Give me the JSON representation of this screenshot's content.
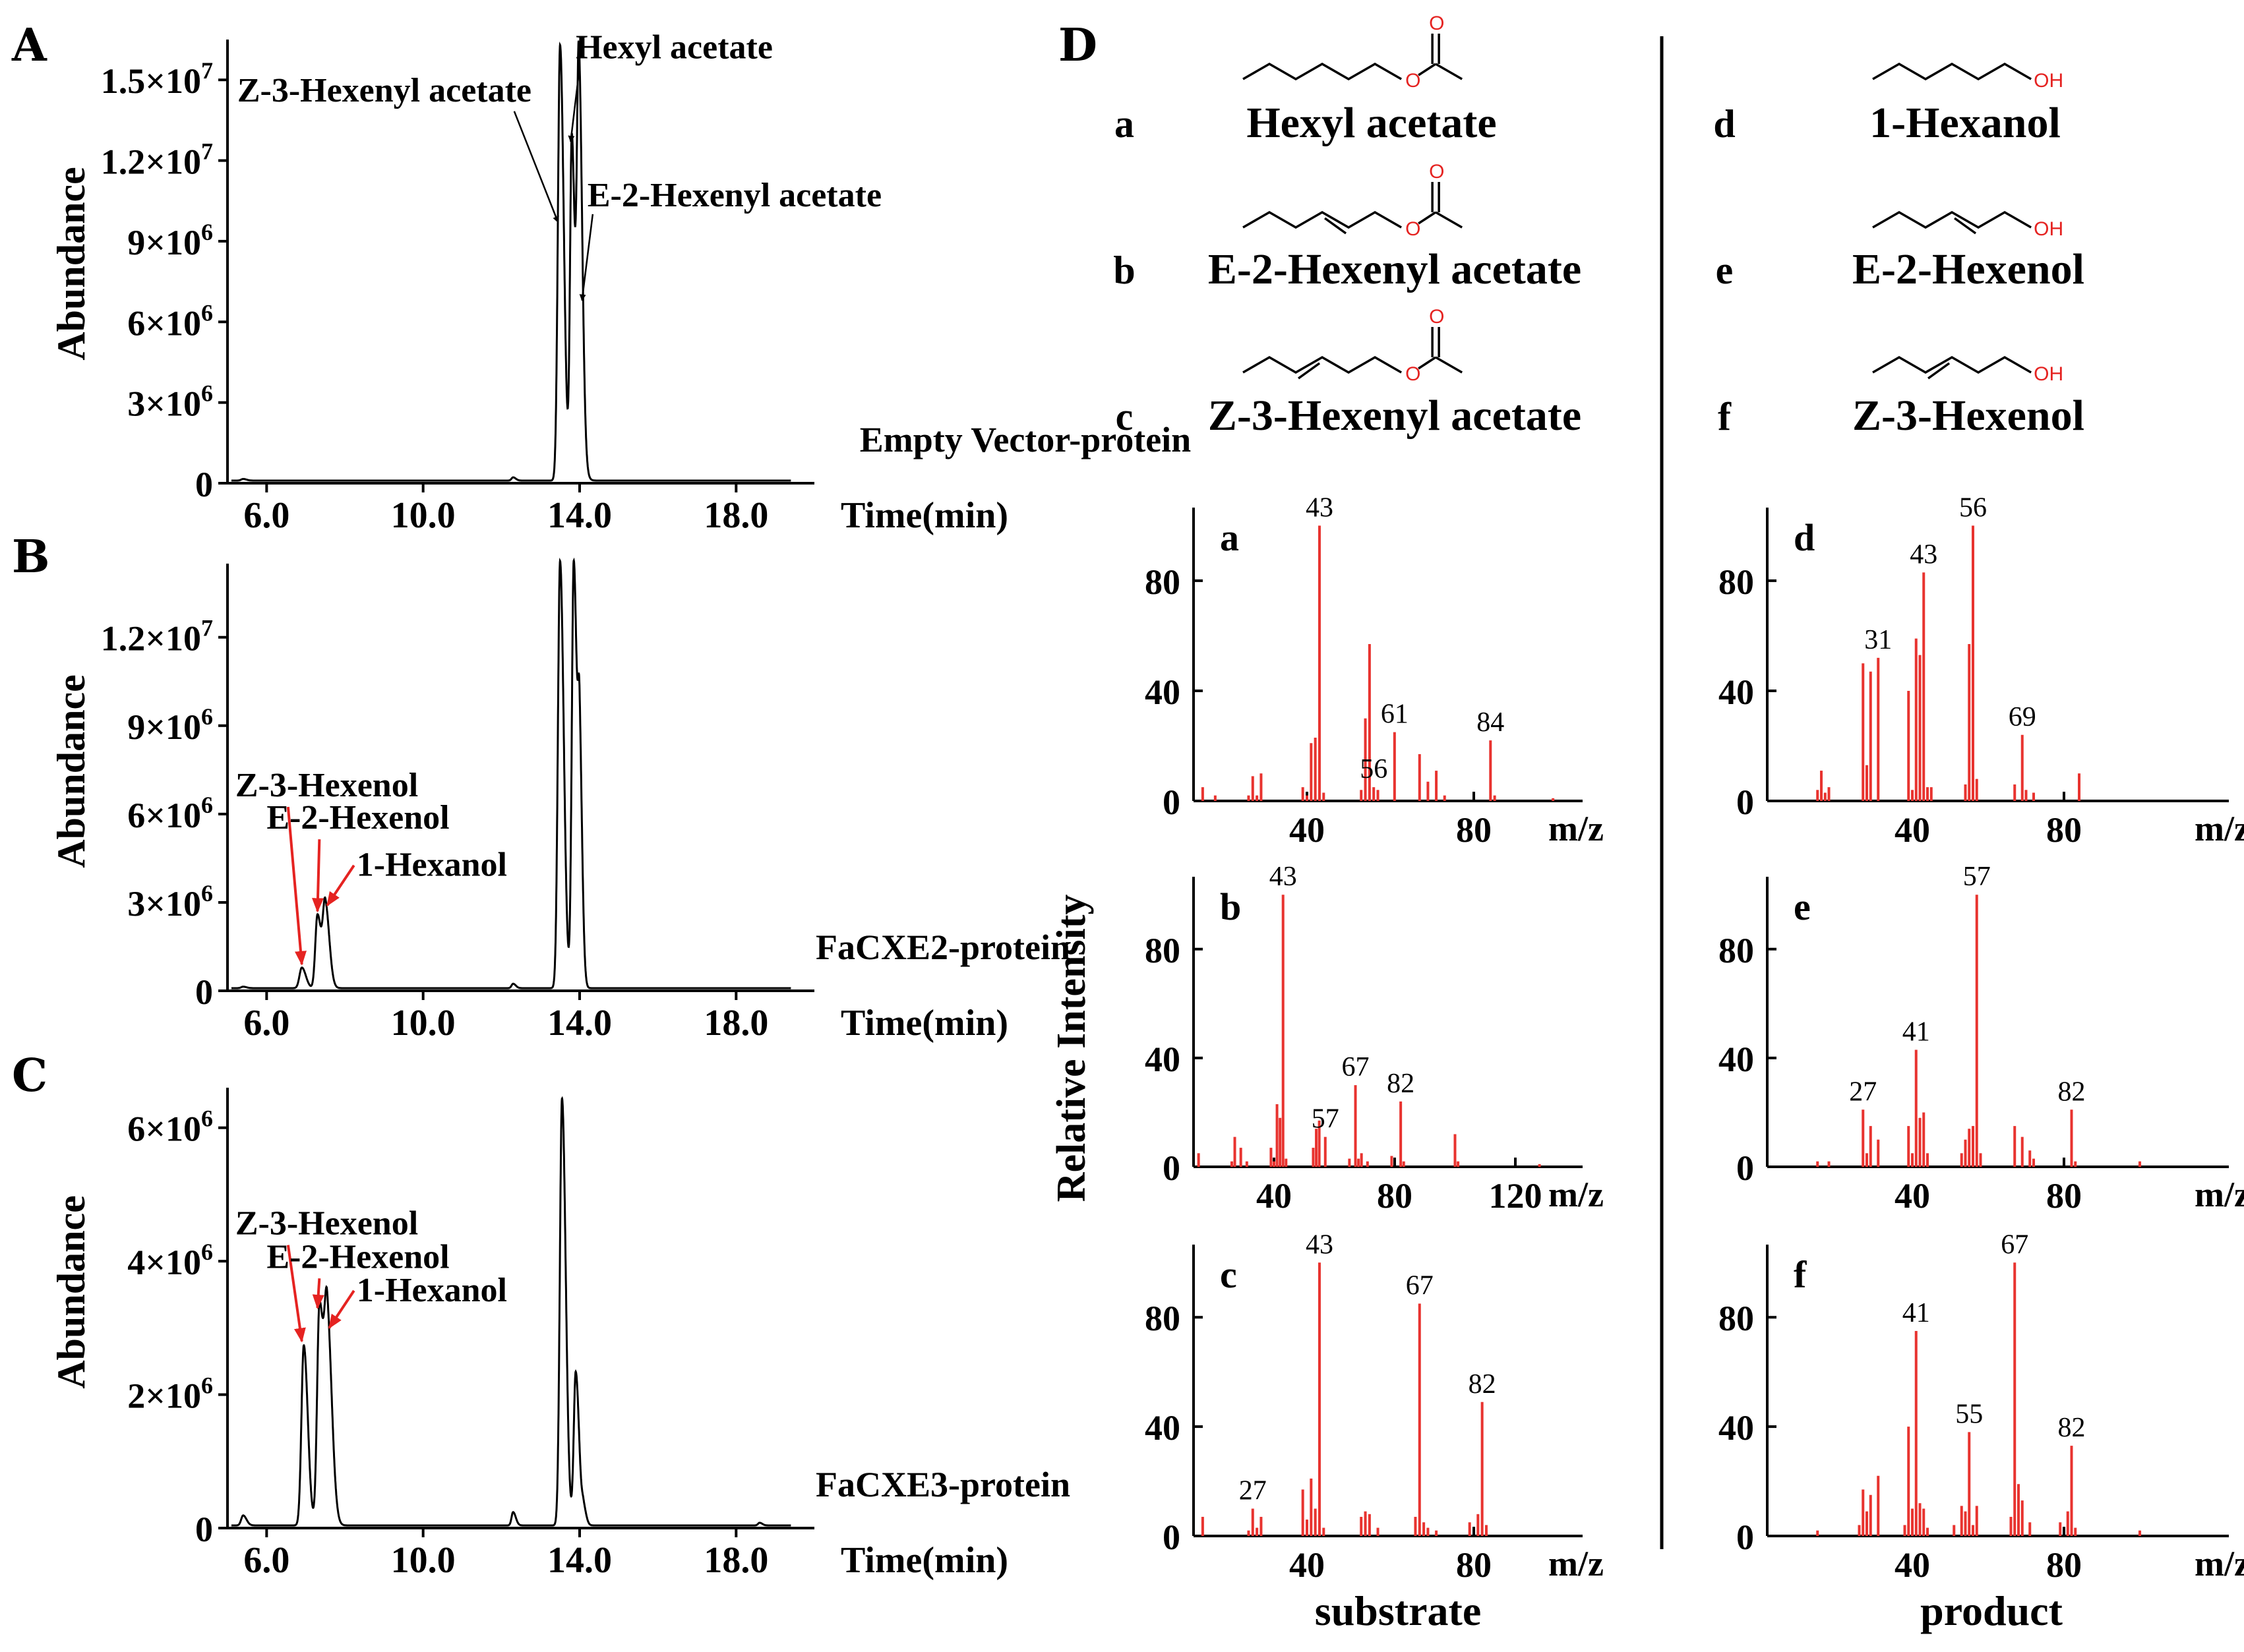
{
  "colors": {
    "trace": "#000000",
    "ms_bar": "#e8332f",
    "arrow_red": "#e52321",
    "heteroatom": "#e52321"
  },
  "panels": {
    "A": "A",
    "B": "B",
    "C": "C",
    "D": "D"
  },
  "chromatogram_axes": {
    "ylabel": "Abundance",
    "xlabel": "Time(min)"
  },
  "ms_axes": {
    "ylabel": "Relative Intensity",
    "xlabel": "m/z",
    "col_left_label": "substrate",
    "col_right_label": "product"
  },
  "compounds": [
    {
      "letter": "a",
      "name": "Hexyl acetate",
      "type": "ester",
      "o_label": "O"
    },
    {
      "letter": "b",
      "name": "E-2-Hexenyl acetate",
      "type": "ester",
      "o_label": "O"
    },
    {
      "letter": "c",
      "name": "Z-3-Hexenyl acetate",
      "type": "ester",
      "o_label": "O"
    },
    {
      "letter": "d",
      "name": "1-Hexanol",
      "type": "alcohol",
      "oh_label": "OH"
    },
    {
      "letter": "e",
      "name": "E-2-Hexenol",
      "type": "alcohol",
      "oh_label": "OH"
    },
    {
      "letter": "f",
      "name": "Z-3-Hexenol",
      "type": "alcohol",
      "oh_label": "OH"
    }
  ],
  "chart_data": [
    {
      "id": "A",
      "type": "line",
      "sample_label": "Empty Vector-protein",
      "xlim": [
        5.0,
        20.0
      ],
      "xticks": [
        6.0,
        10.0,
        14.0,
        18.0
      ],
      "xtick_labels": [
        "6.0",
        "10.0",
        "14.0",
        "18.0"
      ],
      "ylim": [
        0,
        16500000
      ],
      "yticks": [
        0,
        3000000,
        6000000,
        9000000,
        12000000,
        15000000
      ],
      "ytick_labels": [
        {
          "m": "0",
          "e": ""
        },
        {
          "m": "3×10",
          "e": "6"
        },
        {
          "m": "6×10",
          "e": "6"
        },
        {
          "m": "9×10",
          "e": "6"
        },
        {
          "m": "1.2×10",
          "e": "7"
        },
        {
          "m": "1.5×10",
          "e": "7"
        }
      ],
      "peaks": [
        [
          5.4,
          60000,
          0.05
        ],
        [
          12.3,
          120000,
          0.04
        ],
        [
          13.5,
          16200000,
          0.055
        ],
        [
          13.8,
          12800000,
          0.045
        ],
        [
          13.98,
          15500000,
          0.05
        ],
        [
          14.15,
          120000,
          0.05
        ]
      ],
      "annotations": [
        {
          "text": "Z-3-Hexenyl acetate",
          "tx": 5.25,
          "ty": 14200000,
          "ax": 13.45,
          "ay": 9700000,
          "arrow": "black"
        },
        {
          "text": "Hexyl acetate",
          "tx": 13.9,
          "ty": 15800000,
          "ax": 13.77,
          "ay": 12700000,
          "arrow": "black"
        },
        {
          "text": "E-2-Hexenyl acetate",
          "tx": 14.2,
          "ty": 10300000,
          "ax": 14.06,
          "ay": 6800000,
          "arrow": "black"
        }
      ]
    },
    {
      "id": "B",
      "type": "line",
      "sample_label": "FaCXE2-protein",
      "xlim": [
        5.0,
        20.0
      ],
      "xticks": [
        6.0,
        10.0,
        14.0,
        18.0
      ],
      "xtick_labels": [
        "6.0",
        "10.0",
        "14.0",
        "18.0"
      ],
      "ylim": [
        0,
        14500000
      ],
      "yticks": [
        0,
        3000000,
        6000000,
        9000000,
        12000000
      ],
      "ytick_labels": [
        {
          "m": "0",
          "e": ""
        },
        {
          "m": "3×10",
          "e": "6"
        },
        {
          "m": "6×10",
          "e": "6"
        },
        {
          "m": "9×10",
          "e": "6"
        },
        {
          "m": "1.2×10",
          "e": "7"
        }
      ],
      "peaks": [
        [
          5.4,
          50000,
          0.05
        ],
        [
          6.9,
          700000,
          0.06
        ],
        [
          7.3,
          2500000,
          0.055
        ],
        [
          7.5,
          2800000,
          0.06
        ],
        [
          12.3,
          150000,
          0.04
        ],
        [
          13.5,
          14500000,
          0.055
        ],
        [
          13.85,
          14500000,
          0.05
        ],
        [
          14.0,
          7000000,
          0.04
        ]
      ],
      "annotations": [
        {
          "text": "Z-3-Hexenol",
          "tx": 5.2,
          "ty": 6600000,
          "ax": 6.9,
          "ay": 900000,
          "arrow": "red"
        },
        {
          "text": "E-2-Hexenol",
          "tx": 6.0,
          "ty": 5500000,
          "ax": 7.3,
          "ay": 2700000,
          "arrow": "red"
        },
        {
          "text": "1-Hexanol",
          "tx": 8.3,
          "ty": 3900000,
          "ax": 7.55,
          "ay": 2900000,
          "arrow": "red"
        }
      ]
    },
    {
      "id": "C",
      "type": "line",
      "sample_label": "FaCXE3-protein",
      "xlim": [
        5.0,
        20.0
      ],
      "xticks": [
        6.0,
        10.0,
        14.0,
        18.0
      ],
      "xtick_labels": [
        "6.0",
        "10.0",
        "14.0",
        "18.0"
      ],
      "ylim": [
        0,
        6600000
      ],
      "yticks": [
        0,
        2000000,
        4000000,
        6000000
      ],
      "ytick_labels": [
        {
          "m": "0",
          "e": ""
        },
        {
          "m": "2×10",
          "e": "6"
        },
        {
          "m": "4×10",
          "e": "6"
        },
        {
          "m": "6×10",
          "e": "6"
        }
      ],
      "peaks": [
        [
          5.4,
          150000,
          0.05
        ],
        [
          6.95,
          2700000,
          0.06
        ],
        [
          7.35,
          3300000,
          0.06
        ],
        [
          7.55,
          3000000,
          0.07
        ],
        [
          12.3,
          200000,
          0.04
        ],
        [
          13.55,
          6400000,
          0.055
        ],
        [
          13.9,
          2300000,
          0.05
        ],
        [
          14.1,
          250000,
          0.04
        ],
        [
          18.6,
          40000,
          0.04
        ]
      ],
      "annotations": [
        {
          "text": "Z-3-Hexenol",
          "tx": 5.2,
          "ty": 4400000,
          "ax": 6.9,
          "ay": 2800000,
          "arrow": "red"
        },
        {
          "text": "E-2-Hexenol",
          "tx": 6.0,
          "ty": 3900000,
          "ax": 7.3,
          "ay": 3300000,
          "arrow": "red"
        },
        {
          "text": "1-Hexanol",
          "tx": 8.3,
          "ty": 3400000,
          "ax": 7.6,
          "ay": 3000000,
          "arrow": "red"
        }
      ]
    },
    {
      "id": "Da",
      "type": "bar",
      "letter": "a",
      "xlim": [
        10,
        110
      ],
      "xticks": [
        40,
        80
      ],
      "ylim": [
        0,
        100
      ],
      "yticks": [
        0,
        40,
        80
      ],
      "bars": [
        [
          15,
          5
        ],
        [
          18,
          2
        ],
        [
          26,
          2
        ],
        [
          27,
          9
        ],
        [
          28,
          2
        ],
        [
          29,
          10
        ],
        [
          39,
          5
        ],
        [
          40,
          2
        ],
        [
          41,
          21
        ],
        [
          42,
          23
        ],
        [
          43,
          100
        ],
        [
          44,
          3
        ],
        [
          53,
          4
        ],
        [
          54,
          30
        ],
        [
          55,
          57
        ],
        [
          56,
          5
        ],
        [
          57,
          4
        ],
        [
          61,
          25
        ],
        [
          67,
          17
        ],
        [
          69,
          7
        ],
        [
          71,
          11
        ],
        [
          73,
          2
        ],
        [
          84,
          22
        ],
        [
          85,
          2
        ],
        [
          99,
          1
        ]
      ],
      "labels": [
        [
          43,
          "43"
        ],
        [
          56,
          "56"
        ],
        [
          61,
          "61"
        ],
        [
          84,
          "84"
        ]
      ]
    },
    {
      "id": "Db",
      "type": "bar",
      "letter": "b",
      "xlim": [
        10,
        140
      ],
      "xticks": [
        40,
        80,
        120
      ],
      "ylim": [
        0,
        100
      ],
      "yticks": [
        0,
        40,
        80
      ],
      "bars": [
        [
          15,
          5
        ],
        [
          26,
          2
        ],
        [
          27,
          11
        ],
        [
          29,
          7
        ],
        [
          31,
          2
        ],
        [
          39,
          7
        ],
        [
          40,
          2
        ],
        [
          41,
          23
        ],
        [
          42,
          18
        ],
        [
          43,
          100
        ],
        [
          44,
          3
        ],
        [
          53,
          7
        ],
        [
          54,
          14
        ],
        [
          55,
          17
        ],
        [
          57,
          11
        ],
        [
          65,
          3
        ],
        [
          67,
          30
        ],
        [
          68,
          3
        ],
        [
          69,
          5
        ],
        [
          71,
          2
        ],
        [
          79,
          4
        ],
        [
          82,
          24
        ],
        [
          83,
          2
        ],
        [
          100,
          12
        ],
        [
          101,
          2
        ],
        [
          128,
          1
        ]
      ],
      "labels": [
        [
          43,
          "43"
        ],
        [
          57,
          "57"
        ],
        [
          67,
          "67"
        ],
        [
          82,
          "82"
        ]
      ]
    },
    {
      "id": "Dc",
      "type": "bar",
      "letter": "c",
      "xlim": [
        10,
        100
      ],
      "xticks": [
        40,
        80
      ],
      "ylim": [
        0,
        100
      ],
      "yticks": [
        0,
        40,
        80
      ],
      "bars": [
        [
          15,
          7
        ],
        [
          26,
          2
        ],
        [
          27,
          10
        ],
        [
          28,
          3
        ],
        [
          29,
          7
        ],
        [
          39,
          17
        ],
        [
          40,
          6
        ],
        [
          41,
          21
        ],
        [
          42,
          10
        ],
        [
          43,
          100
        ],
        [
          44,
          3
        ],
        [
          53,
          7
        ],
        [
          54,
          9
        ],
        [
          55,
          8
        ],
        [
          57,
          3
        ],
        [
          66,
          7
        ],
        [
          67,
          85
        ],
        [
          68,
          5
        ],
        [
          69,
          3
        ],
        [
          71,
          2
        ],
        [
          79,
          5
        ],
        [
          81,
          8
        ],
        [
          82,
          49
        ],
        [
          83,
          4
        ]
      ],
      "labels": [
        [
          27,
          "27"
        ],
        [
          43,
          "43"
        ],
        [
          67,
          "67"
        ],
        [
          82,
          "82"
        ]
      ]
    },
    {
      "id": "Dd",
      "type": "bar",
      "letter": "d",
      "xlim": [
        10,
        90
      ],
      "xticks": [
        40,
        80
      ],
      "ylim": [
        0,
        100
      ],
      "yticks": [
        0,
        40,
        80
      ],
      "bars": [
        [
          15,
          4
        ],
        [
          16,
          11
        ],
        [
          17,
          3
        ],
        [
          18,
          5
        ],
        [
          27,
          50
        ],
        [
          28,
          13
        ],
        [
          29,
          47
        ],
        [
          31,
          52
        ],
        [
          39,
          40
        ],
        [
          40,
          4
        ],
        [
          41,
          59
        ],
        [
          42,
          53
        ],
        [
          43,
          83
        ],
        [
          44,
          5
        ],
        [
          45,
          5
        ],
        [
          54,
          6
        ],
        [
          55,
          57
        ],
        [
          56,
          100
        ],
        [
          57,
          8
        ],
        [
          67,
          6
        ],
        [
          69,
          24
        ],
        [
          70,
          4
        ],
        [
          72,
          3
        ],
        [
          84,
          10
        ]
      ],
      "labels": [
        [
          31,
          "31"
        ],
        [
          43,
          "43"
        ],
        [
          56,
          "56"
        ],
        [
          69,
          "69"
        ]
      ]
    },
    {
      "id": "De",
      "type": "bar",
      "letter": "e",
      "xlim": [
        10,
        90
      ],
      "xticks": [
        40,
        80
      ],
      "ylim": [
        0,
        100
      ],
      "yticks": [
        0,
        40,
        80
      ],
      "bars": [
        [
          15,
          2
        ],
        [
          18,
          2
        ],
        [
          27,
          21
        ],
        [
          28,
          5
        ],
        [
          29,
          15
        ],
        [
          31,
          10
        ],
        [
          39,
          15
        ],
        [
          40,
          5
        ],
        [
          41,
          43
        ],
        [
          42,
          18
        ],
        [
          43,
          20
        ],
        [
          44,
          5
        ],
        [
          53,
          5
        ],
        [
          54,
          10
        ],
        [
          55,
          14
        ],
        [
          56,
          15
        ],
        [
          57,
          100
        ],
        [
          58,
          5
        ],
        [
          67,
          15
        ],
        [
          69,
          11
        ],
        [
          71,
          6
        ],
        [
          72,
          3
        ],
        [
          82,
          21
        ],
        [
          83,
          2
        ],
        [
          100,
          2
        ]
      ],
      "labels": [
        [
          27,
          "27"
        ],
        [
          41,
          "41"
        ],
        [
          57,
          "57"
        ],
        [
          82,
          "82"
        ]
      ]
    },
    {
      "id": "Df",
      "type": "bar",
      "letter": "f",
      "xlim": [
        10,
        90
      ],
      "xticks": [
        40,
        80
      ],
      "ylim": [
        0,
        100
      ],
      "yticks": [
        0,
        40,
        80
      ],
      "bars": [
        [
          15,
          2
        ],
        [
          26,
          4
        ],
        [
          27,
          17
        ],
        [
          28,
          9
        ],
        [
          29,
          15
        ],
        [
          31,
          22
        ],
        [
          38,
          4
        ],
        [
          39,
          40
        ],
        [
          40,
          10
        ],
        [
          41,
          75
        ],
        [
          42,
          12
        ],
        [
          43,
          10
        ],
        [
          44,
          3
        ],
        [
          51,
          4
        ],
        [
          53,
          11
        ],
        [
          54,
          9
        ],
        [
          55,
          38
        ],
        [
          56,
          4
        ],
        [
          57,
          11
        ],
        [
          66,
          7
        ],
        [
          67,
          100
        ],
        [
          68,
          19
        ],
        [
          69,
          13
        ],
        [
          71,
          5
        ],
        [
          79,
          5
        ],
        [
          81,
          9
        ],
        [
          82,
          33
        ],
        [
          83,
          3
        ],
        [
          100,
          2
        ]
      ],
      "labels": [
        [
          41,
          "41"
        ],
        [
          55,
          "55"
        ],
        [
          67,
          "67"
        ],
        [
          82,
          "82"
        ]
      ]
    }
  ]
}
